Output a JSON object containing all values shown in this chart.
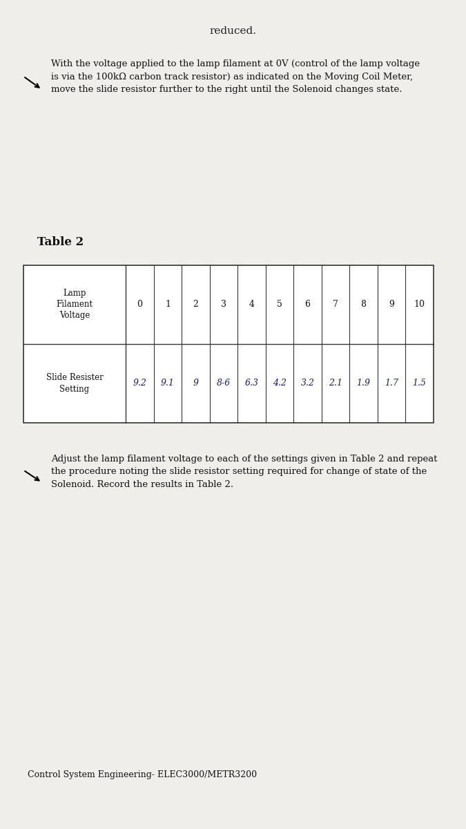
{
  "background_color": "#d8d0c8",
  "page_color": "#f0eeeb",
  "title_text": "reduced.",
  "bullet1_text": "With the voltage applied to the lamp filament at 0V (control of the lamp voltage\nis via the 100kΩ carbon track resistor) as indicated on the Moving Coil Meter,\nmove the slide resistor further to the right until the Solenoid changes state.",
  "table_title": "Table 2",
  "table_header_row1": "Lamp\nFilament\nVoltage",
  "table_header_row2": "Slide Resister\nSetting",
  "lamp_voltage_values": [
    "0",
    "1",
    "2",
    "3",
    "4",
    "5",
    "6",
    "7",
    "8",
    "9",
    "10"
  ],
  "slide_resistor_values": [
    "9.2",
    "9.1",
    "9",
    "8-6",
    "6.3",
    "4.2",
    "3.2",
    "2.1",
    "1.9",
    "1.7",
    "1.5"
  ],
  "bullet2_text": "Adjust the lamp filament voltage to each of the settings given in Table 2 and repeat\nthe procedure noting the slide resistor setting required for change of state of the\nSolenoid. Record the results in Table 2.",
  "footer_text": "Control System Engineering- ELEC3000/METR3200"
}
